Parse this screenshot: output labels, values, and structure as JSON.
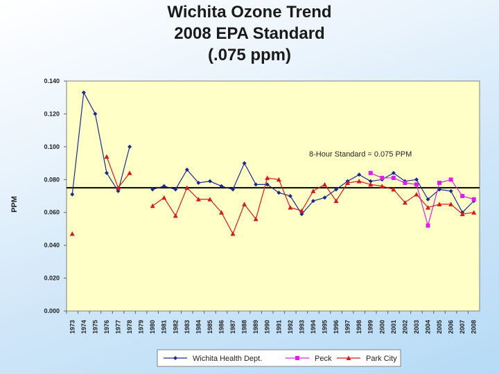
{
  "title_lines": [
    "Wichita Ozone Trend",
    "2008 EPA Standard",
    "(.075 ppm)"
  ],
  "chart_data": {
    "type": "line",
    "title": "Wichita Ozone Trend 2008 EPA Standard (.075 ppm)",
    "ylabel": "PPM",
    "xlabel": "",
    "ylim": [
      0,
      0.14
    ],
    "yticks": [
      0.14,
      0.12,
      0.1,
      0.08,
      0.06,
      0.04,
      0.02,
      0.0
    ],
    "ytick_labels": [
      "0.140",
      "0.120",
      "0.100",
      "0.080",
      "0.060",
      "0.040",
      "0.020",
      "0.000"
    ],
    "categories": [
      "1973",
      "1974",
      "1975",
      "1976",
      "1977",
      "1978",
      "1979",
      "1980",
      "1981",
      "1982",
      "1983",
      "1984",
      "1985",
      "1986",
      "1987",
      "1988",
      "1989",
      "1990",
      "1991",
      "1992",
      "1993",
      "1994",
      "1995",
      "1996",
      "1997",
      "1998",
      "1999",
      "2000",
      "2001",
      "2002",
      "2003",
      "2004",
      "2005",
      "2006",
      "2007",
      "2008"
    ],
    "reference_line": {
      "value": 0.075,
      "label": "8-Hour Standard = 0.075 PPM"
    },
    "series": [
      {
        "name": "Wichita Health Dept.",
        "color": "#1a2a8a",
        "marker": "diamond",
        "values": [
          0.071,
          0.133,
          0.12,
          0.084,
          0.073,
          0.1,
          null,
          0.074,
          0.076,
          0.074,
          0.086,
          0.078,
          0.079,
          0.076,
          0.074,
          0.09,
          0.077,
          0.077,
          0.072,
          0.07,
          0.059,
          0.067,
          0.069,
          0.074,
          0.079,
          0.083,
          0.079,
          0.08,
          0.084,
          0.079,
          0.08,
          0.068,
          0.074,
          0.073,
          0.06,
          0.067
        ]
      },
      {
        "name": "Peck",
        "color": "#e020e0",
        "marker": "square",
        "values": [
          null,
          null,
          null,
          null,
          null,
          null,
          null,
          null,
          null,
          null,
          null,
          null,
          null,
          null,
          null,
          null,
          null,
          null,
          null,
          null,
          null,
          null,
          null,
          null,
          null,
          null,
          0.084,
          0.081,
          0.081,
          0.078,
          0.077,
          0.052,
          0.078,
          0.08,
          0.07,
          0.068
        ]
      },
      {
        "name": "Park City",
        "color": "#d41a1a",
        "marker": "triangle",
        "values": [
          0.047,
          null,
          null,
          0.094,
          0.075,
          0.084,
          null,
          0.064,
          0.069,
          0.058,
          0.075,
          0.068,
          0.068,
          0.06,
          0.047,
          0.065,
          0.056,
          0.081,
          0.08,
          0.063,
          0.061,
          0.073,
          0.077,
          0.067,
          0.078,
          0.079,
          0.077,
          0.076,
          0.074,
          0.066,
          0.071,
          0.063,
          0.065,
          0.065,
          0.059,
          0.06
        ]
      }
    ],
    "legend_position": "bottom"
  }
}
